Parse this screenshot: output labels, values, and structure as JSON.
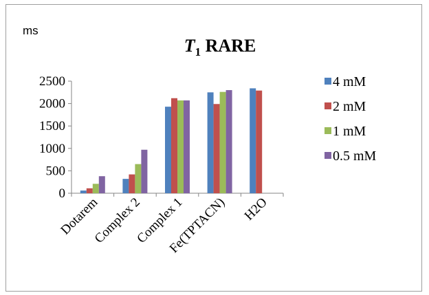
{
  "chart_data": {
    "type": "bar",
    "title_symbol": "T",
    "title_subscript": "1",
    "title_rest": " RARE",
    "ylabel": "ms",
    "categories": [
      "Dotarem",
      "Complex 2",
      "Complex 1",
      "Fe(TPTACN)",
      "H2O"
    ],
    "series": [
      {
        "name": "4 mM",
        "color": "#4f81bd",
        "values": [
          60,
          320,
          1930,
          2250,
          2340
        ]
      },
      {
        "name": "2 mM",
        "color": "#c0504d",
        "values": [
          110,
          420,
          2120,
          1990,
          2290
        ]
      },
      {
        "name": "1 mM",
        "color": "#9bbb59",
        "values": [
          210,
          650,
          2070,
          2260,
          null
        ]
      },
      {
        "name": "0.5 mM",
        "color": "#8064a2",
        "values": [
          380,
          970,
          2070,
          2300,
          null
        ]
      }
    ],
    "ylim": [
      0,
      2500
    ],
    "yticks": [
      0,
      500,
      1000,
      1500,
      2000,
      2500
    ],
    "legend_position": "right",
    "grid": false
  }
}
